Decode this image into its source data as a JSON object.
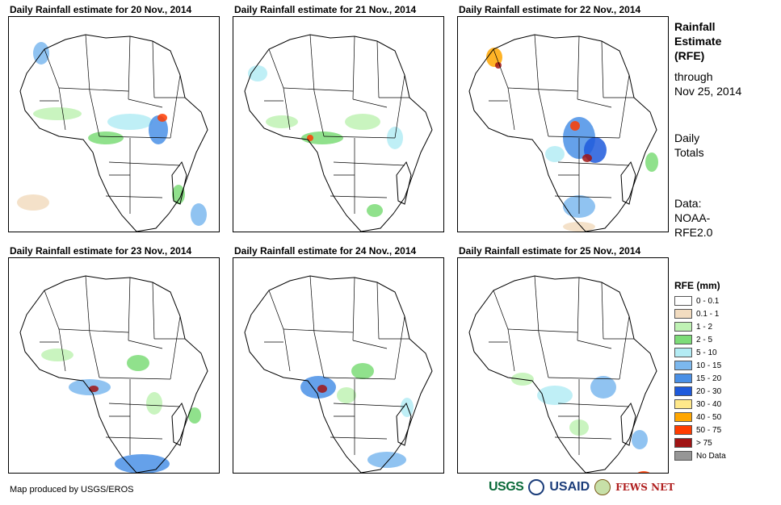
{
  "panels": [
    {
      "title": "Daily Rainfall estimate for 20 Nov., 2014"
    },
    {
      "title": "Daily Rainfall estimate for 21 Nov., 2014"
    },
    {
      "title": "Daily Rainfall estimate for 22 Nov., 2014"
    },
    {
      "title": "Daily Rainfall estimate for 23 Nov., 2014"
    },
    {
      "title": "Daily Rainfall estimate for 24 Nov., 2014"
    },
    {
      "title": "Daily Rainfall estimate for 25 Nov., 2014"
    }
  ],
  "side": {
    "title_line1": "Rainfall",
    "title_line2": "Estimate",
    "title_line3": "(RFE)",
    "through_line1": "through",
    "through_line2": "Nov 25, 2014",
    "totals_line1": "Daily",
    "totals_line2": "Totals",
    "data_line1": "Data:",
    "data_line2": "NOAA-",
    "data_line3": "RFE2.0"
  },
  "legend": {
    "title": "RFE (mm)",
    "items": [
      {
        "label": "0 - 0.1",
        "color": "#ffffff"
      },
      {
        "label": "0.1 - 1",
        "color": "#f2dcc0"
      },
      {
        "label": "1 - 2",
        "color": "#bff2b4"
      },
      {
        "label": "2 - 5",
        "color": "#7ddc78"
      },
      {
        "label": "5 - 10",
        "color": "#b4ecf4"
      },
      {
        "label": "10 - 15",
        "color": "#7cb8ee"
      },
      {
        "label": "15 - 20",
        "color": "#4a90e6"
      },
      {
        "label": "20 - 30",
        "color": "#1e5adc"
      },
      {
        "label": "30 - 40",
        "color": "#ffe88a"
      },
      {
        "label": "40 - 50",
        "color": "#ffa600"
      },
      {
        "label": "50 - 75",
        "color": "#ff3c00"
      },
      {
        "label": "> 75",
        "color": "#a01414"
      },
      {
        "label": "No Data",
        "color": "#969696"
      }
    ]
  },
  "footer": {
    "credit": "Map produced by USGS/EROS"
  },
  "logos": {
    "usgs": "USGS",
    "usaid": "USAID",
    "fews": "FEWS NET"
  }
}
